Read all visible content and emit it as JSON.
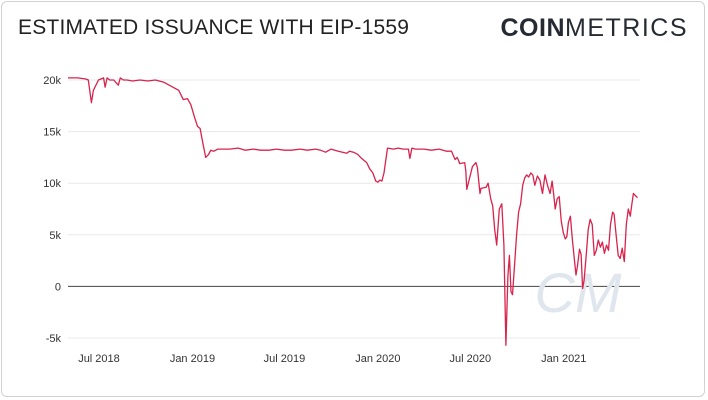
{
  "header": {
    "title": "ESTIMATED ISSUANCE WITH EIP-1559",
    "logo_bold": "COIN",
    "logo_light": "METRICS"
  },
  "colors": {
    "line": "#d8234c",
    "grid": "#e8e8e8",
    "zero_line": "#444444",
    "watermark": "#dfe6ee"
  },
  "watermark": "CM",
  "chart_data": {
    "type": "line",
    "title": "ESTIMATED ISSUANCE WITH EIP-1559",
    "xlabel": "",
    "ylabel": "",
    "ylim": [
      -5000,
      20000
    ],
    "yticks": [
      20000,
      15000,
      10000,
      5000,
      0,
      -5000
    ],
    "ytick_labels": [
      "20k",
      "15k",
      "10k",
      "5k",
      "0",
      "-5k"
    ],
    "xticks": [
      "2018-07-01",
      "2019-01-01",
      "2019-07-01",
      "2020-01-01",
      "2020-07-01",
      "2021-01-01"
    ],
    "xtick_labels": [
      "Jul 2018",
      "Jan 2019",
      "Jul 2019",
      "Jan 2020",
      "Jul 2020",
      "Jan 2021"
    ],
    "xlim": [
      "2018-05-01",
      "2021-05-31"
    ],
    "grid": "horizontal",
    "legend": "none",
    "series": [
      {
        "x": [
          "2018-05-01",
          "2018-05-20",
          "2018-06-05",
          "2018-06-10",
          "2018-06-16",
          "2018-06-20",
          "2018-06-30",
          "2018-07-10",
          "2018-07-13",
          "2018-07-17",
          "2018-07-22",
          "2018-07-30",
          "2018-08-08",
          "2018-08-12",
          "2018-08-18",
          "2018-08-25",
          "2018-09-05",
          "2018-09-20",
          "2018-10-05",
          "2018-10-20",
          "2018-11-05",
          "2018-11-20",
          "2018-12-05",
          "2018-12-14",
          "2018-12-22",
          "2018-12-29",
          "2019-01-05",
          "2019-01-11",
          "2019-01-16",
          "2019-01-21",
          "2019-01-27",
          "2019-02-02",
          "2019-02-06",
          "2019-02-12",
          "2019-02-20",
          "2019-03-01",
          "2019-03-15",
          "2019-04-01",
          "2019-04-15",
          "2019-05-01",
          "2019-05-15",
          "2019-06-01",
          "2019-06-15",
          "2019-07-01",
          "2019-07-15",
          "2019-08-01",
          "2019-08-15",
          "2019-09-01",
          "2019-09-10",
          "2019-09-20",
          "2019-10-01",
          "2019-10-15",
          "2019-11-01",
          "2019-11-06",
          "2019-11-14",
          "2019-11-22",
          "2019-11-30",
          "2019-12-10",
          "2019-12-16",
          "2019-12-22",
          "2019-12-28",
          "2020-01-01",
          "2020-01-05",
          "2020-01-09",
          "2020-01-13",
          "2020-01-20",
          "2020-02-01",
          "2020-02-10",
          "2020-02-20",
          "2020-03-01",
          "2020-03-04",
          "2020-03-08",
          "2020-03-15",
          "2020-04-01",
          "2020-04-15",
          "2020-05-01",
          "2020-05-15",
          "2020-05-25",
          "2020-06-01",
          "2020-06-05",
          "2020-06-08",
          "2020-06-10",
          "2020-06-20",
          "2020-06-22",
          "2020-06-24",
          "2020-07-05",
          "2020-07-12",
          "2020-07-15",
          "2020-07-20",
          "2020-07-22",
          "2020-08-01",
          "2020-08-05",
          "2020-08-10",
          "2020-08-14",
          "2020-08-18",
          "2020-08-22",
          "2020-08-27",
          "2020-09-01",
          "2020-09-05",
          "2020-09-09",
          "2020-09-13",
          "2020-09-16",
          "2020-09-19",
          "2020-09-22",
          "2020-09-26",
          "2020-09-30",
          "2020-10-04",
          "2020-10-08",
          "2020-10-12",
          "2020-10-16",
          "2020-10-20",
          "2020-10-24",
          "2020-10-28",
          "2020-11-01",
          "2020-11-05",
          "2020-11-10",
          "2020-11-15",
          "2020-11-20",
          "2020-11-25",
          "2020-11-30",
          "2020-12-05",
          "2020-12-09",
          "2020-12-12",
          "2020-12-15",
          "2020-12-19",
          "2020-12-23",
          "2020-12-27",
          "2020-12-31",
          "2021-01-04",
          "2021-01-07",
          "2021-01-10",
          "2021-01-14",
          "2021-01-18",
          "2021-01-22",
          "2021-01-25",
          "2021-01-28",
          "2021-02-01",
          "2021-02-04",
          "2021-02-07",
          "2021-02-10",
          "2021-02-14",
          "2021-02-18",
          "2021-02-22",
          "2021-02-26",
          "2021-03-02",
          "2021-03-06",
          "2021-03-10",
          "2021-03-14",
          "2021-03-18",
          "2021-03-22",
          "2021-03-26",
          "2021-03-30",
          "2021-04-03",
          "2021-04-07",
          "2021-04-10",
          "2021-04-14",
          "2021-04-18",
          "2021-04-22",
          "2021-04-26",
          "2021-04-30",
          "2021-05-04",
          "2021-05-08",
          "2021-05-12",
          "2021-05-15",
          "2021-05-18",
          "2021-05-22",
          "2021-05-26"
        ],
        "y": [
          20200,
          20200,
          20100,
          20000,
          17800,
          19000,
          20000,
          20200,
          19300,
          20200,
          20000,
          20000,
          19500,
          20200,
          20000,
          20000,
          19900,
          20000,
          19900,
          20000,
          19800,
          19400,
          19000,
          18100,
          18200,
          17600,
          16400,
          15500,
          15300,
          14000,
          12500,
          12800,
          13200,
          13100,
          13300,
          13300,
          13300,
          13400,
          13200,
          13300,
          13200,
          13200,
          13300,
          13200,
          13200,
          13300,
          13200,
          13300,
          13200,
          13000,
          13300,
          13100,
          12900,
          13100,
          13000,
          12800,
          12400,
          12000,
          11400,
          11000,
          10200,
          10100,
          10300,
          10200,
          11000,
          13400,
          13300,
          13400,
          13300,
          13300,
          12400,
          13400,
          13300,
          13300,
          13200,
          13300,
          13100,
          13100,
          12300,
          12500,
          12200,
          11900,
          12000,
          11200,
          9400,
          11600,
          12000,
          11500,
          9000,
          9500,
          9600,
          10000,
          8500,
          7800,
          5500,
          4000,
          7500,
          8000,
          4000,
          -5700,
          1000,
          3000,
          -500,
          -800,
          2000,
          5000,
          7200,
          8000,
          9800,
          10500,
          10800,
          10600,
          11000,
          10800,
          9800,
          10700,
          10300,
          9000,
          10800,
          9800,
          9000,
          10200,
          9000,
          7500,
          8500,
          8700,
          6300,
          5200,
          4600,
          4800,
          6200,
          6800,
          4500,
          2500,
          1100,
          2000,
          3600,
          3100,
          -200,
          600,
          3000,
          5500,
          6500,
          6000,
          3000,
          3500,
          4500,
          3800,
          4300,
          3200,
          4000,
          3500,
          6000,
          7200,
          7000,
          5000,
          3000,
          2700,
          3700,
          2400,
          6000,
          7500,
          6800,
          8000,
          9000,
          8800,
          8600
        ]
      }
    ]
  }
}
